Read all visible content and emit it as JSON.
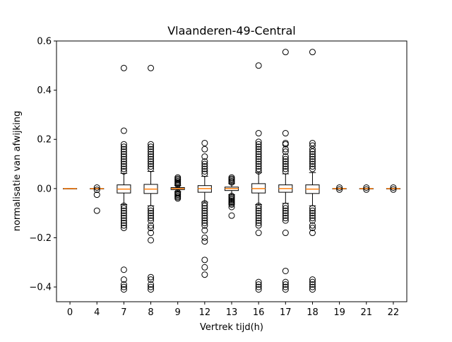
{
  "chart_data": {
    "type": "boxplot",
    "title": "Vlaanderen-49-Central",
    "xlabel": "Vertrek tijd(h)",
    "ylabel": "normalisatie van afwijking",
    "ylim": [
      -0.46,
      0.6
    ],
    "yticks": [
      -0.4,
      -0.2,
      0.0,
      0.2,
      0.4,
      0.6
    ],
    "ytick_labels": [
      "−0.4",
      "−0.2",
      "0.0",
      "0.2",
      "0.4",
      "0.6"
    ],
    "categories": [
      "0",
      "4",
      "7",
      "8",
      "9",
      "12",
      "13",
      "16",
      "17",
      "18",
      "19",
      "21",
      "22"
    ],
    "colors": {
      "median": "#ff7f0e",
      "box": "#000000",
      "flier": "#000000"
    },
    "boxes": [
      {
        "q1": 0.0,
        "median": 0.0,
        "q3": 0.0,
        "whislo": 0.0,
        "whishi": 0.0,
        "fliers": []
      },
      {
        "q1": 0.0,
        "median": 0.0,
        "q3": 0.0,
        "whislo": 0.0,
        "whishi": 0.0,
        "fliers": [
          0.004,
          -0.005,
          -0.025,
          -0.09
        ]
      },
      {
        "q1": -0.018,
        "median": -0.002,
        "q3": 0.015,
        "whislo": -0.065,
        "whishi": 0.062,
        "fliers": [
          0.49,
          0.235,
          0.18,
          0.17,
          0.16,
          0.15,
          0.14,
          0.13,
          0.12,
          0.11,
          0.1,
          0.09,
          0.08,
          0.07,
          -0.07,
          -0.08,
          -0.09,
          -0.1,
          -0.11,
          -0.12,
          -0.13,
          -0.14,
          -0.15,
          -0.16,
          -0.33,
          -0.37,
          -0.39,
          -0.4,
          -0.41
        ]
      },
      {
        "q1": -0.02,
        "median": -0.002,
        "q3": 0.017,
        "whislo": -0.07,
        "whishi": 0.07,
        "fliers": [
          0.49,
          0.18,
          0.17,
          0.16,
          0.15,
          0.14,
          0.13,
          0.12,
          0.11,
          0.1,
          0.09,
          0.08,
          -0.08,
          -0.09,
          -0.1,
          -0.11,
          -0.12,
          -0.13,
          -0.15,
          -0.16,
          -0.18,
          -0.21,
          -0.36,
          -0.37,
          -0.39,
          -0.4,
          -0.41
        ]
      },
      {
        "q1": -0.004,
        "median": 0.0,
        "q3": 0.004,
        "whislo": -0.012,
        "whishi": 0.012,
        "fliers": [
          0.045,
          0.04,
          0.035,
          0.03,
          0.025,
          0.02,
          0.016,
          -0.016,
          -0.02,
          -0.025,
          -0.03,
          -0.035,
          -0.04
        ]
      },
      {
        "q1": -0.015,
        "median": 0.0,
        "q3": 0.012,
        "whislo": -0.055,
        "whishi": 0.05,
        "fliers": [
          0.185,
          0.16,
          0.13,
          0.11,
          0.1,
          0.09,
          0.08,
          0.07,
          0.06,
          -0.06,
          -0.07,
          -0.08,
          -0.09,
          -0.1,
          -0.11,
          -0.12,
          -0.13,
          -0.14,
          -0.15,
          -0.17,
          -0.2,
          -0.215,
          -0.29,
          -0.32,
          -0.35
        ]
      },
      {
        "q1": -0.008,
        "median": 0.0,
        "q3": 0.006,
        "whislo": -0.025,
        "whishi": 0.02,
        "fliers": [
          0.045,
          0.04,
          0.035,
          0.03,
          0.025,
          -0.03,
          -0.035,
          -0.04,
          -0.045,
          -0.05,
          -0.055,
          -0.06,
          -0.065,
          -0.075,
          -0.11
        ]
      },
      {
        "q1": -0.018,
        "median": 0.0,
        "q3": 0.02,
        "whislo": -0.065,
        "whishi": 0.065,
        "fliers": [
          0.5,
          0.225,
          0.19,
          0.18,
          0.17,
          0.16,
          0.15,
          0.14,
          0.13,
          0.12,
          0.11,
          0.1,
          0.09,
          0.08,
          0.07,
          -0.07,
          -0.08,
          -0.09,
          -0.1,
          -0.11,
          -0.12,
          -0.13,
          -0.14,
          -0.15,
          -0.18,
          -0.38,
          -0.39,
          -0.4,
          -0.41
        ]
      },
      {
        "q1": -0.015,
        "median": 0.0,
        "q3": 0.015,
        "whislo": -0.06,
        "whishi": 0.06,
        "fliers": [
          0.555,
          0.225,
          0.185,
          0.18,
          0.16,
          0.15,
          0.13,
          0.12,
          0.11,
          0.1,
          0.09,
          0.08,
          0.07,
          -0.07,
          -0.08,
          -0.09,
          -0.1,
          -0.11,
          -0.12,
          -0.13,
          -0.18,
          -0.335,
          -0.38,
          -0.39,
          -0.4,
          -0.41
        ]
      },
      {
        "q1": -0.02,
        "median": -0.002,
        "q3": 0.015,
        "whislo": -0.07,
        "whishi": 0.065,
        "fliers": [
          0.555,
          0.185,
          0.175,
          0.16,
          0.15,
          0.14,
          0.13,
          0.12,
          0.11,
          0.1,
          0.09,
          0.08,
          -0.08,
          -0.09,
          -0.1,
          -0.11,
          -0.12,
          -0.13,
          -0.15,
          -0.16,
          -0.18,
          -0.37,
          -0.38,
          -0.39,
          -0.4,
          -0.41
        ]
      },
      {
        "q1": 0.0,
        "median": 0.0,
        "q3": 0.0,
        "whislo": 0.0,
        "whishi": 0.0,
        "fliers": [
          0.004,
          -0.004
        ]
      },
      {
        "q1": 0.0,
        "median": 0.0,
        "q3": 0.0,
        "whislo": 0.0,
        "whishi": 0.0,
        "fliers": [
          0.004,
          -0.004
        ]
      },
      {
        "q1": 0.0,
        "median": 0.0,
        "q3": 0.0,
        "whislo": 0.0,
        "whishi": 0.0,
        "fliers": [
          0.004,
          -0.004
        ]
      }
    ]
  }
}
